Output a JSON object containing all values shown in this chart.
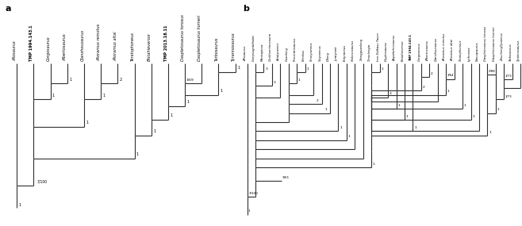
{
  "panel_a": {
    "taxa": [
      "Allosaurus",
      "TMP 1994.143.1",
      "Gorgosaurus",
      "Albertosaurus",
      "Qianzhousaurus",
      "Alioramus remotus",
      "Alioramus altai",
      "Teratophoneus",
      "Bistahieversor",
      "TMP 2013.18.11",
      "Daspletosaurus torosus",
      "Daspletosaurus horneri",
      "Tarbosaurus",
      "Tyrannosaurus"
    ],
    "bold_taxa": [
      "TMP 1994.143.1",
      "TMP 2013.18.11"
    ],
    "italic_taxa": [
      "Allosaurus",
      "Gorgosaurus",
      "Albertosaurus",
      "Qianzhousaurus",
      "Alioramus remotus",
      "Alioramus altai",
      "Teratophoneus",
      "Bistahieversor",
      "Daspletosaurus torosus",
      "Daspletosaurus horneri",
      "Tarbosaurus",
      "Tyrannosaurus"
    ],
    "n": 14
  },
  "panel_b": {
    "taxa": [
      "Allosaurus",
      "Compsognathidae",
      "Maniraptora",
      "Ornithomimosauria",
      "Aviatyrannis",
      "Guanlong",
      "Proceratosaurus",
      "Kileskus",
      "Sinotyrannus",
      "Yutyrannus",
      "Dilong",
      "Juratyrant",
      "Eotyrannus",
      "Stokesosaurus",
      "Xiongguanlong",
      "Timurlengia",
      "Iren Dalbasu Taxon",
      "Dryptosaurus",
      "Appalachiosaurus",
      "Bistahieversor",
      "TMP 1994.143.1",
      "Gorgosaurus",
      "Albertosaurus",
      "Qianzhousaurus",
      "Alioramus remotus",
      "Alioramus altai",
      "Teratophoneus",
      "Lythronax",
      "Nanuqsaurus",
      "Daspletosaurus torosus",
      "Daspletosaurus horneri",
      "ZhuchengTyrannus",
      "Tarbosaurus",
      "Tyrannosaurus"
    ],
    "bold_taxa": [
      "TMP 1994.143.1"
    ],
    "n": 34
  },
  "line_color": "#303030",
  "line_width": 0.8,
  "bg_color": "#ffffff"
}
